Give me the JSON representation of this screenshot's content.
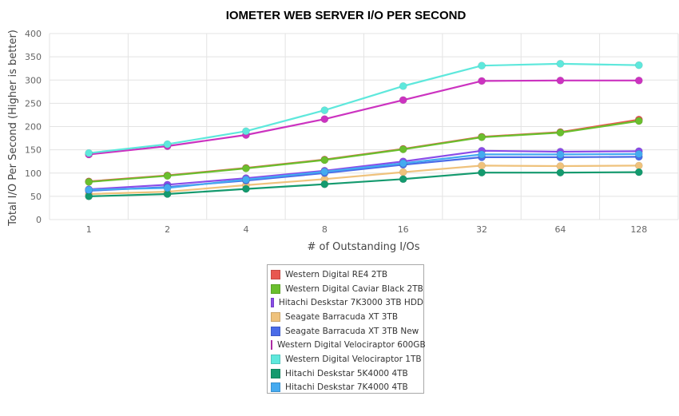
{
  "chart_data": {
    "type": "line",
    "title": "IOMETER WEB SERVER I/O PER SECOND",
    "xlabel": "# of Outstanding I/Os",
    "ylabel": "Total I/O Per Second (Higher is better)",
    "x": [
      "1",
      "2",
      "4",
      "8",
      "16",
      "32",
      "64",
      "128"
    ],
    "ylim": [
      0,
      400
    ],
    "yticks": [
      0,
      50,
      100,
      150,
      200,
      250,
      300,
      350,
      400
    ],
    "grid": true,
    "legend_position": "bottom",
    "series": [
      {
        "name": "Western Digital RE4 2TB",
        "color": "#e8574f",
        "values": [
          82,
          95,
          111,
          129,
          152,
          178,
          188,
          215
        ]
      },
      {
        "name": "Western Digital Caviar Black 2TB",
        "color": "#6abf2e",
        "values": [
          81,
          94,
          110,
          128,
          151,
          177,
          187,
          212
        ]
      },
      {
        "name": "Hitachi Deskstar 7K3000 3TB HDD",
        "color": "#8a4ce8",
        "values": [
          65,
          75,
          89,
          105,
          125,
          148,
          146,
          147
        ]
      },
      {
        "name": "Seagate Barracuda XT 3TB",
        "color": "#efc27c",
        "values": [
          55,
          60,
          74,
          87,
          102,
          116,
          115,
          116
        ]
      },
      {
        "name": "Seagate Barracuda XT 3TB New",
        "color": "#4a6ce8",
        "values": [
          62,
          70,
          84,
          100,
          118,
          134,
          134,
          135
        ]
      },
      {
        "name": "Western Digital Velociraptor 600GB",
        "color": "#cc33c0",
        "values": [
          140,
          158,
          182,
          216,
          257,
          298,
          299,
          299
        ]
      },
      {
        "name": "Western Digital Velociraptor 1TB",
        "color": "#5ee8dc",
        "values": [
          143,
          162,
          190,
          235,
          287,
          331,
          335,
          332
        ]
      },
      {
        "name": "Hitachi Deskstar 5K4000 4TB",
        "color": "#149a6e",
        "values": [
          50,
          55,
          66,
          76,
          87,
          101,
          101,
          102
        ]
      },
      {
        "name": "Hitachi Deskstar 7K4000 4TB",
        "color": "#44aaf0",
        "values": [
          64,
          68,
          86,
          103,
          121,
          140,
          140,
          141
        ]
      }
    ]
  }
}
